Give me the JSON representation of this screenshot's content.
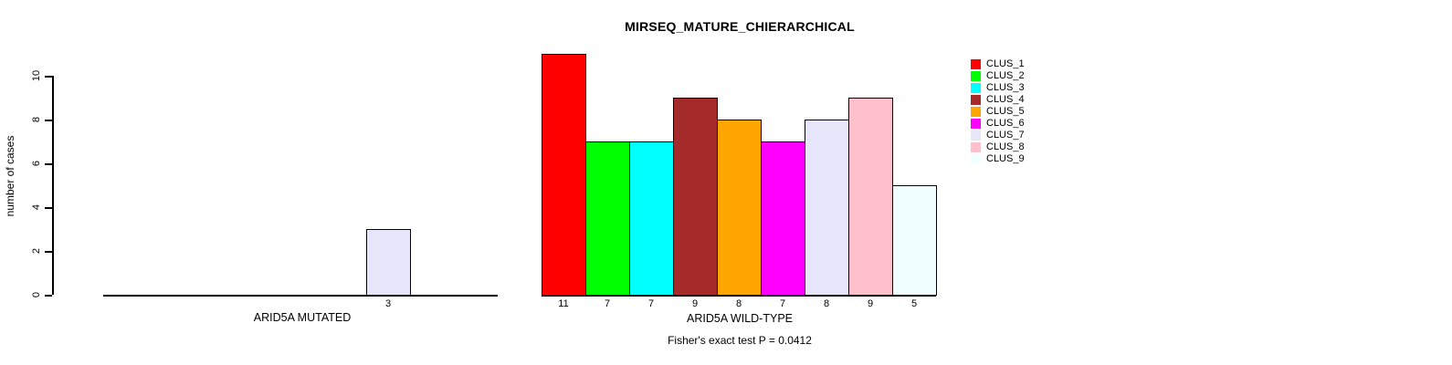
{
  "chart_data": {
    "type": "bar",
    "title": "MIRSEQ_MATURE_CHIERARCHICAL",
    "ylabel": "number of cases",
    "ylim": [
      0,
      10
    ],
    "yticks": [
      0,
      2,
      4,
      6,
      8,
      10
    ],
    "grid": false,
    "legend_position": "right",
    "categories": [
      "CLUS_1",
      "CLUS_2",
      "CLUS_3",
      "CLUS_4",
      "CLUS_5",
      "CLUS_6",
      "CLUS_7",
      "CLUS_8",
      "CLUS_9"
    ],
    "series_colors": [
      "#FF0000",
      "#00FF00",
      "#00FFFF",
      "#A52A2A",
      "#FFA500",
      "#FF00FF",
      "#E6E6FA",
      "#FFC0CB",
      "#F0FFFF"
    ],
    "panels": [
      {
        "xlabel": "ARID5A MUTATED",
        "values": [
          0,
          0,
          0,
          0,
          0,
          0,
          3,
          0,
          0
        ],
        "bar_labels": [
          "",
          "",
          "",
          "",
          "",
          "",
          "3",
          "",
          ""
        ]
      },
      {
        "xlabel": "ARID5A WILD-TYPE",
        "values": [
          11,
          7,
          7,
          9,
          8,
          7,
          8,
          9,
          5
        ],
        "bar_labels": [
          "11",
          "7",
          "7",
          "9",
          "8",
          "7",
          "8",
          "9",
          "5"
        ]
      }
    ],
    "annotation": "Fisher's exact test P = 0.0412"
  },
  "colors": {
    "axis": "#000000",
    "text": "#000000",
    "background": "#FFFFFF"
  }
}
